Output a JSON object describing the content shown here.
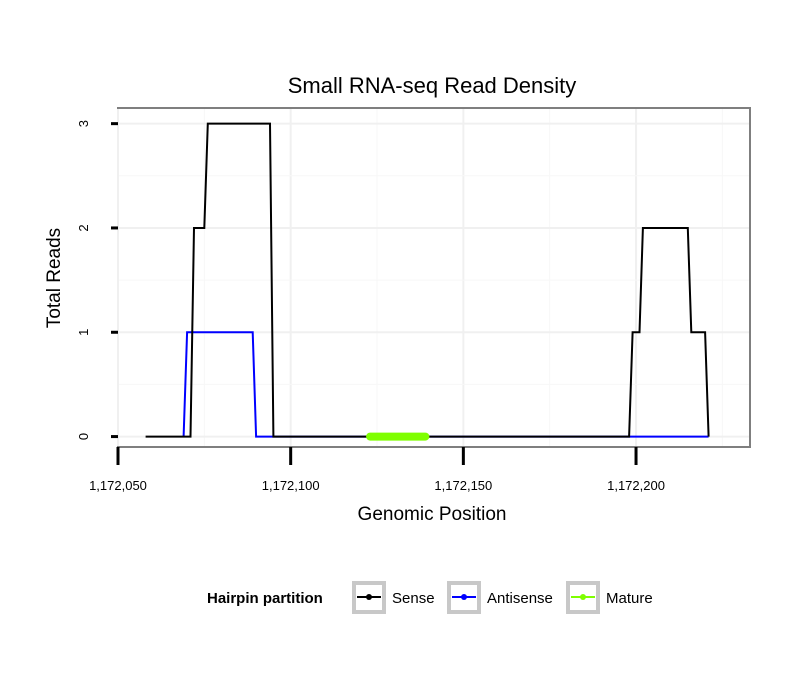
{
  "chart_data": {
    "type": "line",
    "title": "Small RNA-seq Read Density",
    "xlabel": "Genomic Position",
    "ylabel": "Total Reads",
    "xlim": [
      1172050,
      1172233
    ],
    "ylim": [
      -0.1,
      3.15
    ],
    "x_ticks": [
      1172050,
      1172100,
      1172150,
      1172200
    ],
    "x_tick_labels": [
      "1,172,050",
      "1,172,100",
      "1,172,150",
      "1,172,200"
    ],
    "y_ticks": [
      0,
      1,
      2,
      3
    ],
    "y_tick_labels": [
      "0",
      "1",
      "2",
      "3"
    ],
    "grid": true,
    "legend": {
      "title": "Hairpin partition",
      "position": "bottom",
      "items": [
        "Sense",
        "Antisense",
        "Mature"
      ]
    },
    "series": [
      {
        "name": "Sense",
        "color": "#000000",
        "x": [
          1172058,
          1172071,
          1172072,
          1172075,
          1172076,
          1172077,
          1172094,
          1172095,
          1172198,
          1172199,
          1172201,
          1172202,
          1172215,
          1172216,
          1172220,
          1172221
        ],
        "values": [
          0,
          0,
          2,
          2,
          3,
          3,
          3,
          0,
          0,
          1,
          1,
          2,
          2,
          1,
          1,
          0
        ]
      },
      {
        "name": "Antisense",
        "color": "#0000ff",
        "x": [
          1172069,
          1172070,
          1172089,
          1172090,
          1172221
        ],
        "values": [
          0,
          1,
          1,
          0,
          0
        ]
      },
      {
        "name": "Mature",
        "color": "#7fff00",
        "x": [
          1172123,
          1172139
        ],
        "values": [
          0,
          0
        ]
      }
    ]
  }
}
